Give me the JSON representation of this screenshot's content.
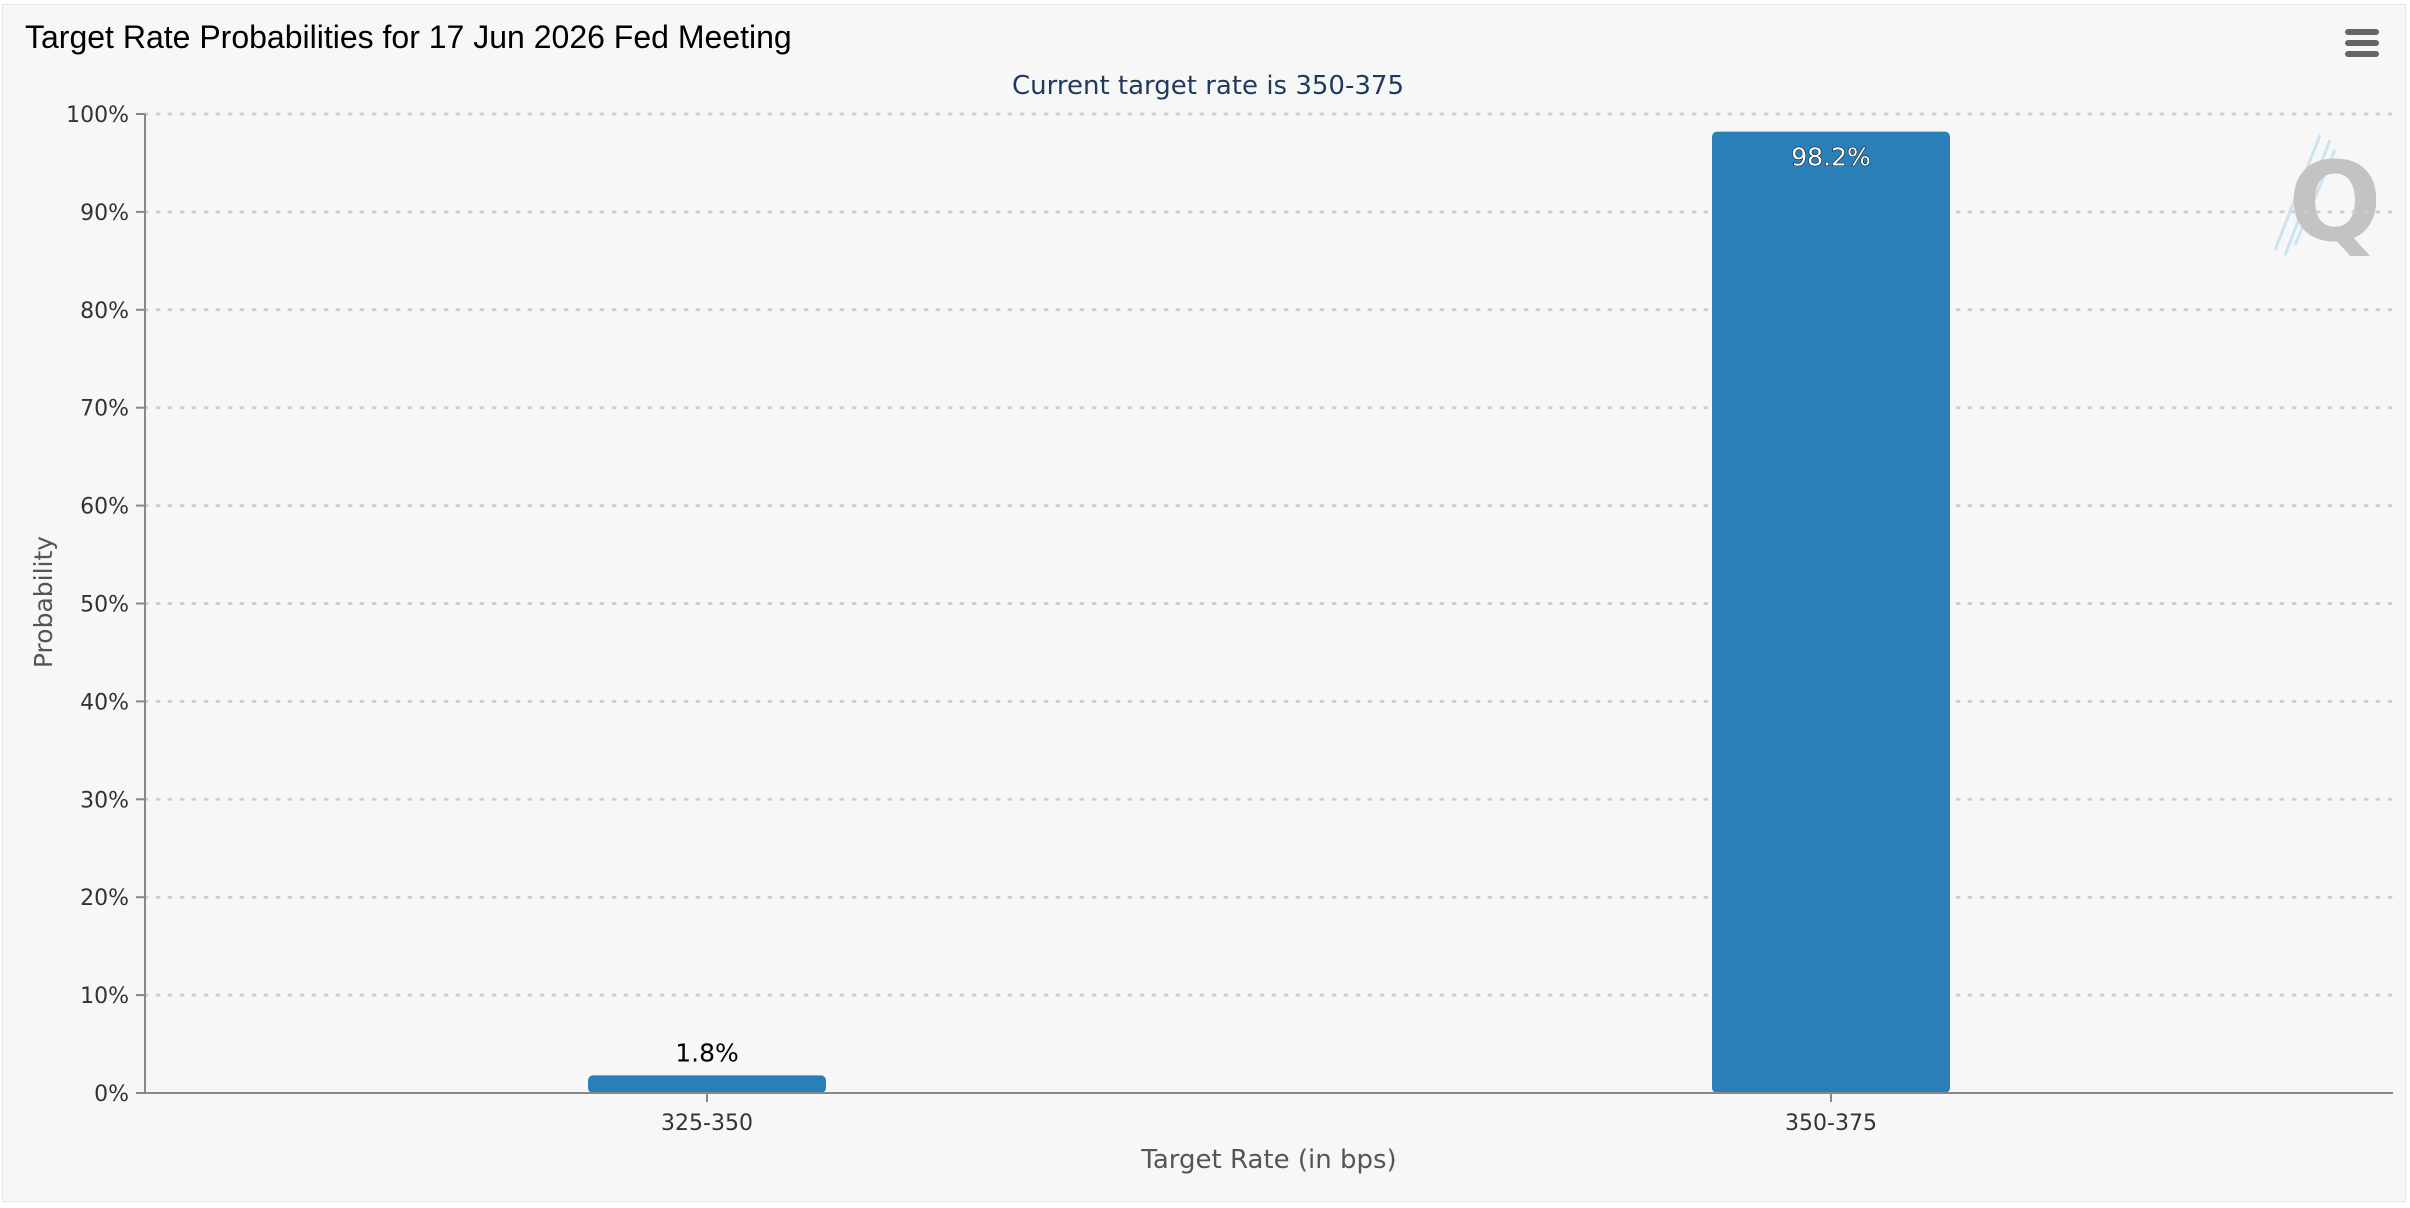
{
  "header": {
    "title": "Target Rate Probabilities for 17 Jun 2026 Fed Meeting",
    "menu_icon": "hamburger-menu-icon"
  },
  "watermark": {
    "icon": "q-logo-icon",
    "letter": "Q"
  },
  "chart_data": {
    "type": "bar",
    "subtitle": "Current target rate is 350-375",
    "xlabel": "Target Rate (in bps)",
    "ylabel": "Probability",
    "categories": [
      "325-350",
      "350-375"
    ],
    "values": [
      1.8,
      98.2
    ],
    "data_labels": [
      "1.8%",
      "98.2%"
    ],
    "ylim": [
      0,
      100
    ],
    "yticks": [
      0,
      10,
      20,
      30,
      40,
      50,
      60,
      70,
      80,
      90,
      100
    ],
    "ytick_suffix": "%",
    "grid": true,
    "legend": false,
    "bar_color": "#2a7fb8"
  }
}
